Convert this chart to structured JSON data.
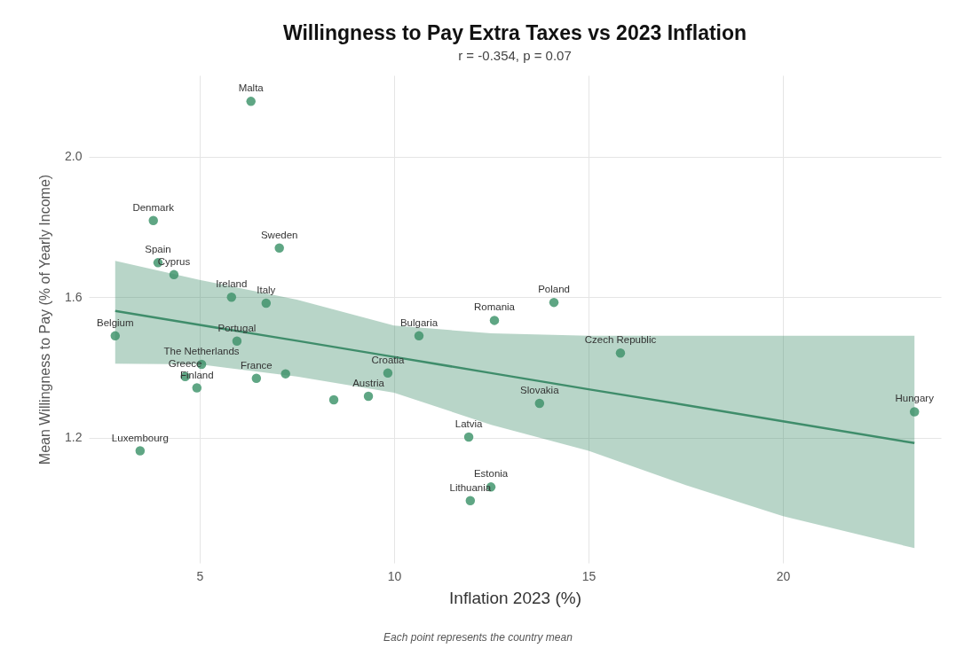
{
  "chart_data": {
    "type": "scatter",
    "title": "Willingness to Pay Extra Taxes vs 2023 Inflation",
    "subtitle": "r = -0.354,  p = 0.07",
    "xlabel": "Inflation 2023 (%)",
    "ylabel": "Mean Willingness to Pay (% of Yearly Income)",
    "xlim": [
      2.15,
      24.06
    ],
    "ylim": [
      0.844,
      2.231
    ],
    "xticks": [
      5,
      10,
      15,
      20
    ],
    "yticks": [
      1.2,
      1.6,
      {
        "value": 2,
        "label": "2.0"
      }
    ],
    "grid": true,
    "marker": "circle",
    "series": [
      {
        "color": "#5fa684",
        "x": [
          6.32,
          3.81,
          7.05,
          3.93,
          4.34,
          5.82,
          6.71,
          14.11,
          12.58,
          2.83,
          10.64,
          5.96,
          15.82,
          5.05,
          4.63,
          4.93,
          6.46,
          7.21,
          9.84,
          9.34,
          8.45,
          13.74,
          23.38,
          11.92,
          3.47,
          12.49,
          11.96
        ],
        "values": [
          2.157,
          1.818,
          1.74,
          1.698,
          1.664,
          1.6,
          1.583,
          1.585,
          1.534,
          1.49,
          1.49,
          1.475,
          1.441,
          1.409,
          1.374,
          1.342,
          1.369,
          1.382,
          1.384,
          1.318,
          1.308,
          1.298,
          1.274,
          1.202,
          1.163,
          1.06,
          1.021
        ]
      },
      {
        "type": "line",
        "color": "#3f8d6b",
        "line_style": "solid",
        "marker": "none",
        "x": [
          2.83,
          5,
          7.5,
          10,
          12.5,
          15,
          17.5,
          20,
          23.38
        ],
        "values": [
          1.561,
          1.521,
          1.476,
          1.43,
          1.384,
          1.338,
          1.293,
          1.247,
          1.185
        ],
        "lower": [
          1.411,
          1.409,
          1.374,
          1.328,
          1.237,
          1.163,
          1.065,
          0.977,
          0.886
        ],
        "upper": [
          1.703,
          1.649,
          1.593,
          1.519,
          1.497,
          1.49,
          1.49,
          1.49,
          1.49
        ]
      }
    ],
    "annotations": [
      {
        "text": "Malta",
        "x": 6.32,
        "y": 2.157
      },
      {
        "text": "Denmark",
        "x": 3.81,
        "y": 1.818
      },
      {
        "text": "Sweden",
        "x": 7.05,
        "y": 1.74
      },
      {
        "text": "Spain",
        "x": 3.93,
        "y": 1.698
      },
      {
        "text": "Cyprus",
        "x": 4.34,
        "y": 1.664
      },
      {
        "text": "Ireland",
        "x": 5.82,
        "y": 1.6
      },
      {
        "text": "Italy",
        "x": 6.71,
        "y": 1.583
      },
      {
        "text": "Poland",
        "x": 14.11,
        "y": 1.585
      },
      {
        "text": "Romania",
        "x": 12.58,
        "y": 1.534
      },
      {
        "text": "Belgium",
        "x": 2.83,
        "y": 1.49
      },
      {
        "text": "Bulgaria",
        "x": 10.64,
        "y": 1.49
      },
      {
        "text": "Portugal",
        "x": 5.96,
        "y": 1.475
      },
      {
        "text": "Czech Republic",
        "x": 15.82,
        "y": 1.441
      },
      {
        "text": "The Netherlands",
        "x": 5.05,
        "y": 1.409
      },
      {
        "text": "Greece",
        "x": 4.63,
        "y": 1.374
      },
      {
        "text": "Finland",
        "x": 4.93,
        "y": 1.342
      },
      {
        "text": "France",
        "x": 6.46,
        "y": 1.369
      },
      {
        "text": "Croatia",
        "x": 9.84,
        "y": 1.384
      },
      {
        "text": "Austria",
        "x": 9.34,
        "y": 1.318
      },
      {
        "text": "Slovakia",
        "x": 13.74,
        "y": 1.298
      },
      {
        "text": "Hungary",
        "x": 23.38,
        "y": 1.274
      },
      {
        "text": "Latvia",
        "x": 11.92,
        "y": 1.202
      },
      {
        "text": "Luxembourg",
        "x": 3.47,
        "y": 1.163
      },
      {
        "text": "Estonia",
        "x": 12.49,
        "y": 1.06
      },
      {
        "text": "Lithuania",
        "x": 11.96,
        "y": 1.021
      },
      "Each point represents the country mean"
    ]
  }
}
